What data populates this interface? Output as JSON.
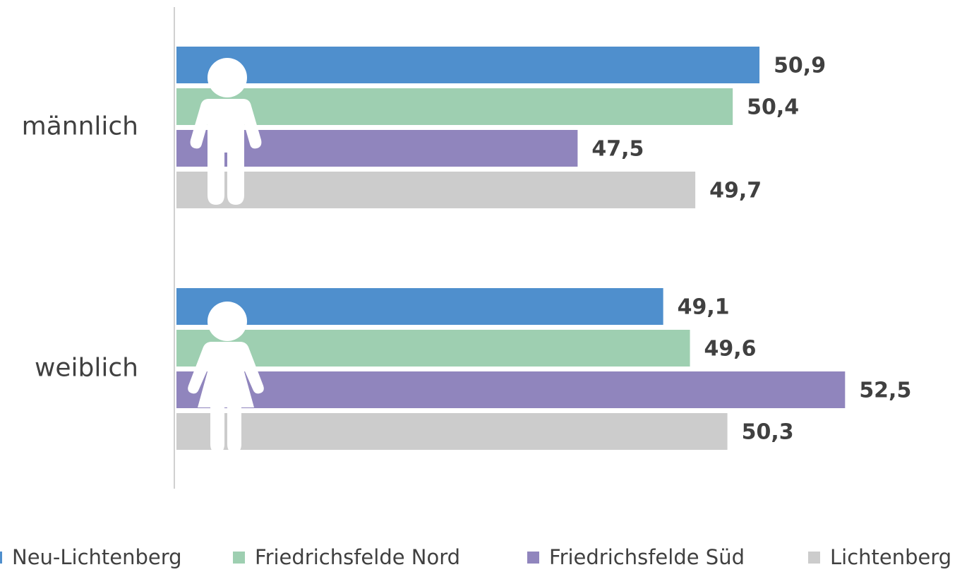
{
  "chart_data": {
    "type": "bar",
    "orientation": "horizontal",
    "categories": [
      "männlich",
      "weiblich"
    ],
    "series": [
      {
        "name": "Neu-Lichtenberg",
        "color": "#4f8fcd",
        "values": [
          50.9,
          49.1
        ],
        "value_labels": [
          "50,9",
          "49,1"
        ]
      },
      {
        "name": "Friedrichsfelde Nord",
        "color": "#9ecfb1",
        "values": [
          50.4,
          49.6
        ],
        "value_labels": [
          "50,4",
          "49,6"
        ]
      },
      {
        "name": "Friedrichsfelde Süd",
        "color": "#9085bd",
        "values": [
          47.5,
          52.5
        ],
        "value_labels": [
          "47,5",
          "52,5"
        ]
      },
      {
        "name": "Lichtenberg",
        "color": "#cccccc",
        "values": [
          49.7,
          50.3
        ],
        "value_labels": [
          "49,7",
          "50,3"
        ]
      }
    ],
    "xlim": [
      40,
      54
    ],
    "legend": "bottom"
  }
}
